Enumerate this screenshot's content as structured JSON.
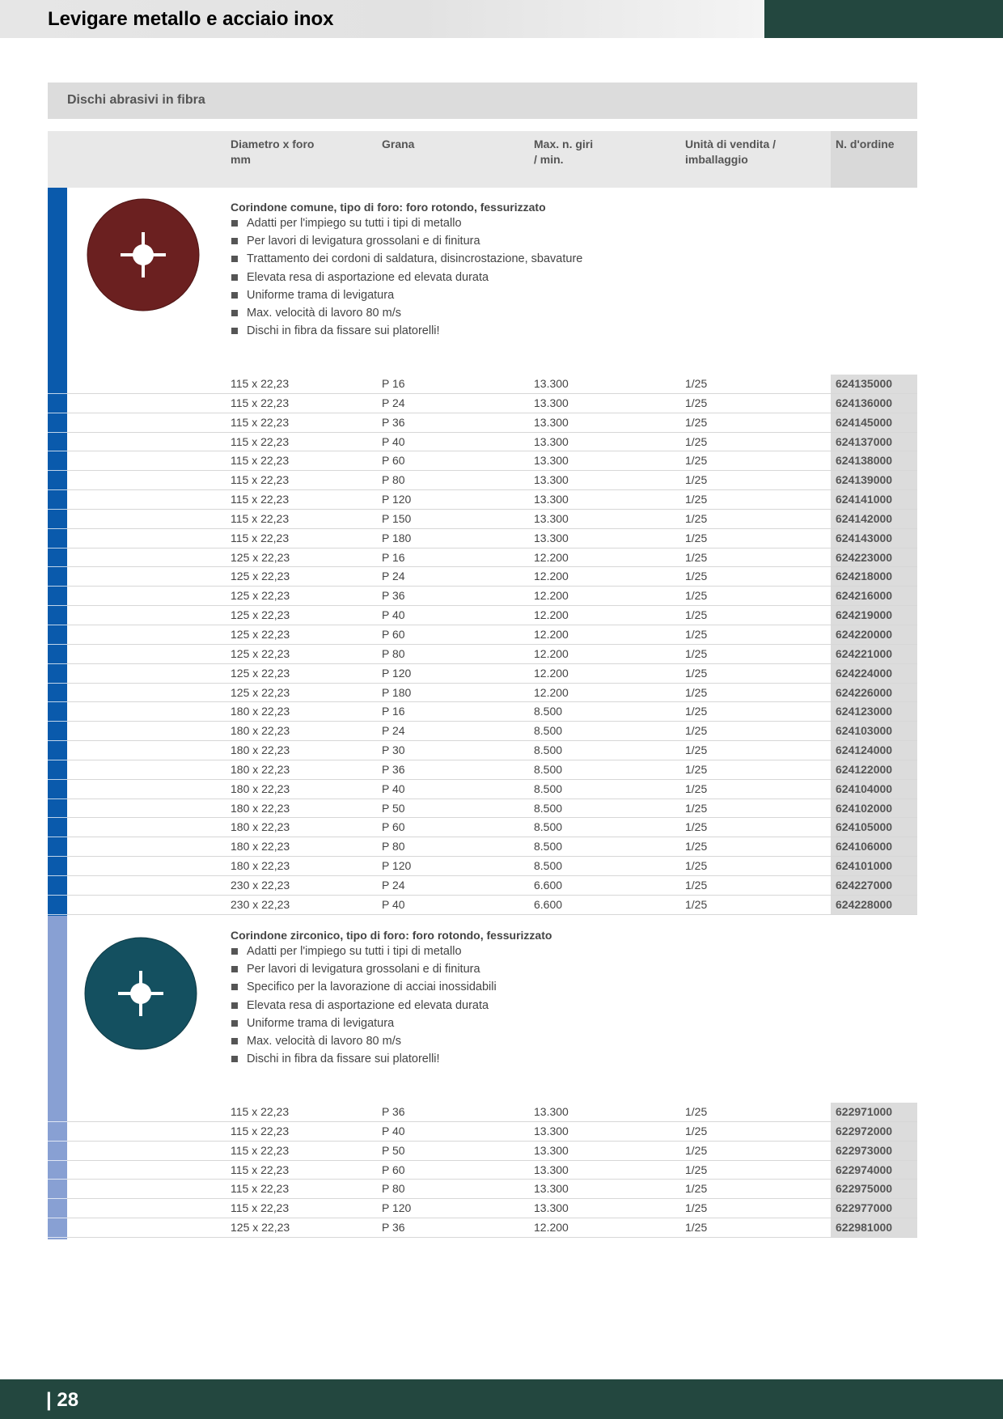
{
  "header": {
    "title": "Levigare metallo e acciaio inox",
    "colors": {
      "dark_band": "#23473f",
      "light_band": "#e4e4e4"
    }
  },
  "section": {
    "title": "Dischi abrasivi in fibra"
  },
  "columns": {
    "diameter": [
      "Diametro x foro",
      "mm"
    ],
    "grit": [
      "Grana",
      ""
    ],
    "rpm": [
      "Max. n. giri",
      "/ min."
    ],
    "pack": [
      "Unità di vendita /",
      "imballaggio"
    ],
    "order": [
      "N. d'ordine",
      ""
    ]
  },
  "groups": [
    {
      "stripe_color": "#0a5aac",
      "disc_color": "#6a1f1f",
      "disc_icon": "aluminium-oxide-fibre-disc-icon",
      "title": "Corindone comune, tipo di foro: foro rotondo, fessurizzato",
      "features": [
        "Adatti per l'impiego su tutti i tipi di metallo",
        "Per lavori di levigatura grossolani e di finitura",
        "Trattamento dei cordoni di saldatura, disincrostazione, sbavature",
        "Elevata resa di asportazione ed elevata durata",
        "Uniforme trama di levigatura",
        "Max. velocità di lavoro 80 m/s",
        "Dischi in fibra da fissare sui platorelli!"
      ],
      "rows": [
        [
          "115 x 22,23",
          "P 16",
          "13.300",
          "1/25",
          "624135000"
        ],
        [
          "115 x 22,23",
          "P 24",
          "13.300",
          "1/25",
          "624136000"
        ],
        [
          "115 x 22,23",
          "P 36",
          "13.300",
          "1/25",
          "624145000"
        ],
        [
          "115 x 22,23",
          "P 40",
          "13.300",
          "1/25",
          "624137000"
        ],
        [
          "115 x 22,23",
          "P 60",
          "13.300",
          "1/25",
          "624138000"
        ],
        [
          "115 x 22,23",
          "P 80",
          "13.300",
          "1/25",
          "624139000"
        ],
        [
          "115 x 22,23",
          "P 120",
          "13.300",
          "1/25",
          "624141000"
        ],
        [
          "115 x 22,23",
          "P 150",
          "13.300",
          "1/25",
          "624142000"
        ],
        [
          "115 x 22,23",
          "P 180",
          "13.300",
          "1/25",
          "624143000"
        ],
        [
          "125 x 22,23",
          "P 16",
          "12.200",
          "1/25",
          "624223000"
        ],
        [
          "125 x 22,23",
          "P 24",
          "12.200",
          "1/25",
          "624218000"
        ],
        [
          "125 x 22,23",
          "P 36",
          "12.200",
          "1/25",
          "624216000"
        ],
        [
          "125 x 22,23",
          "P 40",
          "12.200",
          "1/25",
          "624219000"
        ],
        [
          "125 x 22,23",
          "P 60",
          "12.200",
          "1/25",
          "624220000"
        ],
        [
          "125 x 22,23",
          "P 80",
          "12.200",
          "1/25",
          "624221000"
        ],
        [
          "125 x 22,23",
          "P 120",
          "12.200",
          "1/25",
          "624224000"
        ],
        [
          "125 x 22,23",
          "P 180",
          "12.200",
          "1/25",
          "624226000"
        ],
        [
          "180 x 22,23",
          "P 16",
          "8.500",
          "1/25",
          "624123000"
        ],
        [
          "180 x 22,23",
          "P 24",
          "8.500",
          "1/25",
          "624103000"
        ],
        [
          "180 x 22,23",
          "P 30",
          "8.500",
          "1/25",
          "624124000"
        ],
        [
          "180 x 22,23",
          "P 36",
          "8.500",
          "1/25",
          "624122000"
        ],
        [
          "180 x 22,23",
          "P 40",
          "8.500",
          "1/25",
          "624104000"
        ],
        [
          "180 x 22,23",
          "P 50",
          "8.500",
          "1/25",
          "624102000"
        ],
        [
          "180 x 22,23",
          "P 60",
          "8.500",
          "1/25",
          "624105000"
        ],
        [
          "180 x 22,23",
          "P 80",
          "8.500",
          "1/25",
          "624106000"
        ],
        [
          "180 x 22,23",
          "P 120",
          "8.500",
          "1/25",
          "624101000"
        ],
        [
          "230 x 22,23",
          "P 24",
          "6.600",
          "1/25",
          "624227000"
        ],
        [
          "230 x 22,23",
          "P 40",
          "6.600",
          "1/25",
          "624228000"
        ]
      ]
    },
    {
      "stripe_color": "#88a0d3",
      "disc_color": "#14505c",
      "disc_icon": "zirconia-fibre-disc-icon",
      "title": "Corindone zirconico, tipo di foro: foro rotondo, fessurizzato",
      "features": [
        "Adatti per l'impiego su tutti i tipi di metallo",
        "Per lavori di levigatura grossolani e di finitura",
        "Specifico per la lavorazione di acciai inossidabili",
        "Elevata resa di asportazione ed elevata durata",
        "Uniforme trama di levigatura",
        "Max. velocità di lavoro 80 m/s",
        "Dischi in fibra da fissare sui platorelli!"
      ],
      "rows": [
        [
          "115 x 22,23",
          "P 36",
          "13.300",
          "1/25",
          "622971000"
        ],
        [
          "115 x 22,23",
          "P 40",
          "13.300",
          "1/25",
          "622972000"
        ],
        [
          "115 x 22,23",
          "P 50",
          "13.300",
          "1/25",
          "622973000"
        ],
        [
          "115 x 22,23",
          "P 60",
          "13.300",
          "1/25",
          "622974000"
        ],
        [
          "115 x 22,23",
          "P 80",
          "13.300",
          "1/25",
          "622975000"
        ],
        [
          "115 x 22,23",
          "P 120",
          "13.300",
          "1/25",
          "622977000"
        ],
        [
          "125 x 22,23",
          "P 36",
          "12.200",
          "1/25",
          "622981000"
        ]
      ]
    }
  ],
  "footer": {
    "page_number": "| 28",
    "color": "#23473f"
  }
}
